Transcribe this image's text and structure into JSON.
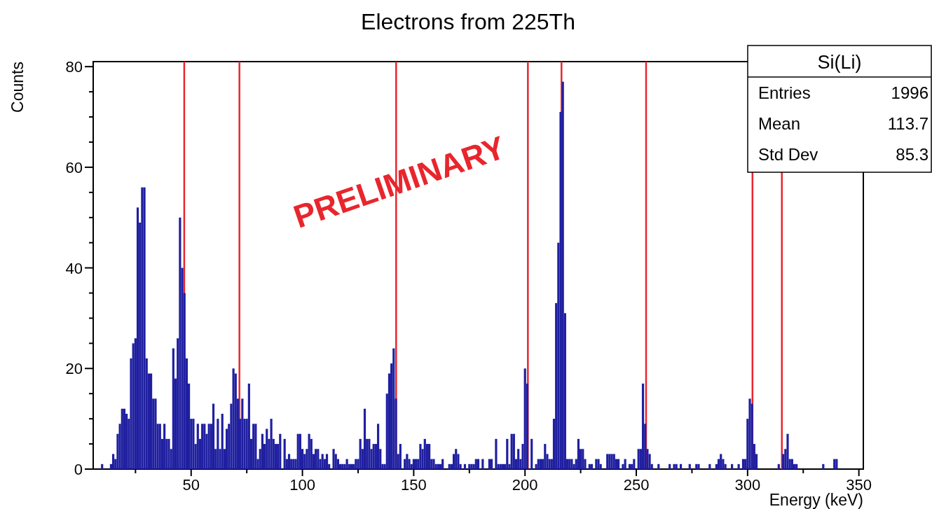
{
  "chart_data": {
    "type": "histogram",
    "title": "Electrons from 225Th",
    "xlabel": "Energy (keV)",
    "ylabel": "Counts",
    "color": "#1f1fa0",
    "bins": [
      9.5,
      10.5,
      11.5,
      12.5,
      13.5,
      14.5,
      15.5,
      16.5,
      17.5,
      18.5,
      19.5,
      20.5,
      21.5,
      22.5,
      23.5,
      24.5,
      25.5,
      26.5,
      27.5,
      28.5,
      29.5,
      30.5,
      31.5,
      32.5,
      33.5,
      34.5,
      35.5,
      36.5,
      37.5,
      38.5,
      39.5,
      40.5,
      41.5,
      42.5,
      43.5,
      44.5,
      45.5,
      46.5,
      47.5,
      48.5,
      49.5,
      50.5,
      51.5,
      52.5,
      53.5,
      54.5,
      55.5,
      56.5,
      57.5,
      58.5,
      59.5,
      60.5,
      61.5,
      62.5,
      63.5,
      64.5,
      65.5,
      66.5,
      67.5,
      68.5,
      69.5,
      70.5,
      71.5,
      72.5,
      73.5,
      74.5,
      75.5,
      76.5,
      77.5,
      78.5,
      79.5,
      80.5,
      81.5,
      82.5,
      83.5,
      84.5,
      85.5,
      86.5,
      87.5,
      88.5,
      89.5,
      90.5,
      91.5,
      92.5,
      93.5,
      94.5,
      95.5,
      96.5,
      97.5,
      98.5,
      99.5,
      100.5,
      101.5,
      102.5,
      103.5,
      104.5,
      105.5,
      106.5,
      107.5,
      108.5,
      109.5,
      110.5,
      111.5,
      112.5,
      113.5,
      114.5,
      115.5,
      116.5,
      117.5,
      118.5,
      119.5,
      120.5,
      121.5,
      122.5,
      123.5,
      124.5,
      125.5,
      126.5,
      127.5,
      128.5,
      129.5,
      130.5,
      131.5,
      132.5,
      133.5,
      134.5,
      135.5,
      136.5,
      137.5,
      138.5,
      139.5,
      140.5,
      141.5,
      142.5,
      143.5,
      144.5,
      145.5,
      146.5,
      147.5,
      148.5,
      149.5,
      150.5,
      151.5,
      152.5,
      153.5,
      154.5,
      155.5,
      156.5,
      157.5,
      158.5,
      159.5,
      160.5,
      161.5,
      162.5,
      163.5,
      164.5,
      165.5,
      166.5,
      167.5,
      168.5,
      169.5,
      170.5,
      171.5,
      172.5,
      173.5,
      174.5,
      175.5,
      176.5,
      177.5,
      178.5,
      179.5,
      180.5,
      181.5,
      182.5,
      183.5,
      184.5,
      185.5,
      186.5,
      187.5,
      188.5,
      189.5,
      190.5,
      191.5,
      192.5,
      193.5,
      194.5,
      195.5,
      196.5,
      197.5,
      198.5,
      199.5,
      200.5,
      201.5,
      202.5,
      203.5,
      204.5,
      205.5,
      206.5,
      207.5,
      208.5,
      209.5,
      210.5,
      211.5,
      212.5,
      213.5,
      214.5,
      215.5,
      216.5,
      217.5,
      218.5,
      219.5,
      220.5,
      221.5,
      222.5,
      223.5,
      224.5,
      225.5,
      226.5,
      227.5,
      228.5,
      229.5,
      230.5,
      231.5,
      232.5,
      233.5,
      234.5,
      235.5,
      236.5,
      237.5,
      238.5,
      239.5,
      240.5,
      241.5,
      242.5,
      243.5,
      244.5,
      245.5,
      246.5,
      247.5,
      248.5,
      249.5,
      250.5,
      251.5,
      252.5,
      253.5,
      254.5,
      255.5,
      256.5,
      257.5,
      258.5,
      259.5,
      260.5,
      261.5,
      262.5,
      263.5,
      264.5,
      265.5,
      266.5,
      267.5,
      268.5,
      269.5,
      270.5,
      271.5,
      272.5,
      273.5,
      274.5,
      275.5,
      276.5,
      277.5,
      278.5,
      279.5,
      280.5,
      281.5,
      282.5,
      283.5,
      284.5,
      285.5,
      286.5,
      287.5,
      288.5,
      289.5,
      290.5,
      291.5,
      292.5,
      293.5,
      294.5,
      295.5,
      296.5,
      297.5,
      298.5,
      299.5,
      300.5,
      301.5,
      302.5,
      303.5,
      304.5,
      305.5,
      306.5,
      307.5,
      308.5,
      309.5,
      310.5,
      311.5,
      312.5,
      313.5,
      314.5,
      315.5,
      316.5,
      317.5,
      318.5,
      319.5,
      320.5,
      321.5,
      322.5,
      323.5,
      324.5,
      325.5,
      326.5,
      327.5,
      328.5,
      329.5,
      330.5,
      331.5,
      332.5,
      333.5,
      334.5,
      335.5,
      336.5,
      337.5,
      338.5,
      339.5,
      340.5
    ],
    "values": [
      1,
      0,
      0,
      0,
      1,
      3,
      2,
      7,
      9,
      12,
      12,
      11,
      10,
      22,
      25,
      26,
      52,
      49,
      56,
      56,
      22,
      19,
      19,
      14,
      14,
      9,
      9,
      6,
      9,
      6,
      6,
      4,
      24,
      18,
      26,
      50,
      40,
      35,
      22,
      17,
      10,
      10,
      5,
      9,
      6,
      9,
      9,
      7,
      9,
      9,
      13,
      4,
      10,
      4,
      11,
      4,
      8,
      9,
      13,
      20,
      19,
      14,
      10,
      14,
      10,
      10,
      17,
      6,
      9,
      9,
      2,
      4,
      7,
      5,
      8,
      6,
      10,
      6,
      5,
      5,
      7,
      0,
      6,
      2,
      3,
      2,
      2,
      2,
      7,
      7,
      4,
      3,
      4,
      7,
      6,
      3,
      4,
      4,
      2,
      3,
      2,
      3,
      1,
      0,
      4,
      3,
      2,
      1,
      1,
      1,
      2,
      1,
      1,
      1,
      2,
      2,
      6,
      4,
      12,
      6,
      6,
      4,
      5,
      5,
      9,
      4,
      1,
      1,
      15,
      19,
      21,
      24,
      14,
      3,
      5,
      0,
      2,
      3,
      2,
      1,
      2,
      2,
      2,
      5,
      4,
      6,
      5,
      5,
      2,
      2,
      1,
      1,
      1,
      2,
      0,
      0,
      1,
      1,
      3,
      4,
      3,
      1,
      0,
      1,
      0,
      1,
      1,
      1,
      2,
      2,
      0,
      2,
      0,
      0,
      2,
      2,
      0,
      6,
      1,
      1,
      1,
      1,
      6,
      1,
      7,
      7,
      2,
      4,
      2,
      5,
      20,
      17,
      0,
      6,
      0,
      1,
      2,
      2,
      2,
      5,
      3,
      2,
      2,
      10,
      33,
      45,
      71,
      77,
      31,
      2,
      2,
      2,
      1,
      2,
      6,
      4,
      4,
      2,
      0,
      1,
      1,
      0,
      2,
      2,
      1,
      0,
      0,
      3,
      3,
      3,
      3,
      2,
      2,
      0,
      1,
      2,
      0,
      1,
      1,
      2,
      0,
      4,
      4,
      17,
      9,
      4,
      3,
      1,
      0,
      0,
      1,
      0,
      0,
      0,
      0,
      1,
      0,
      1,
      1,
      0,
      1,
      0,
      0,
      0,
      1,
      0,
      0,
      1,
      1,
      0,
      0,
      0,
      0,
      1,
      0,
      0,
      1,
      2,
      3,
      2,
      1,
      0,
      0,
      1,
      0,
      0,
      1,
      0,
      2,
      2,
      10,
      14,
      13,
      5,
      3,
      0,
      0,
      0,
      0,
      0,
      0,
      0,
      0,
      0,
      1,
      0,
      3,
      4,
      7,
      2,
      2,
      1,
      1,
      0,
      0,
      0,
      0,
      0,
      0,
      0,
      0,
      0,
      0,
      0,
      1,
      0,
      0,
      0,
      0,
      2,
      2
    ],
    "xlim": [
      6,
      352
    ],
    "xticks": [
      {
        "value": 25,
        "label": null
      },
      50,
      {
        "value": 75,
        "label": null
      },
      100,
      {
        "value": 125,
        "label": null
      },
      150,
      {
        "value": 175,
        "label": null
      },
      200,
      {
        "value": 225,
        "label": null
      },
      250,
      {
        "value": 275,
        "label": null
      },
      300,
      {
        "value": 325,
        "label": null
      },
      350
    ],
    "ylim": [
      0,
      81
    ],
    "yticks": [
      0,
      {
        "value": 5,
        "label": null
      },
      {
        "value": 10,
        "label": null
      },
      {
        "value": 15,
        "label": null
      },
      20,
      {
        "value": 25,
        "label": null
      },
      {
        "value": 30,
        "label": null
      },
      {
        "value": 35,
        "label": null
      },
      40,
      {
        "value": 45,
        "label": null
      },
      {
        "value": 50,
        "label": null
      },
      {
        "value": 55,
        "label": null
      },
      60,
      {
        "value": 65,
        "label": null
      },
      {
        "value": 70,
        "label": null
      },
      {
        "value": 75,
        "label": null
      },
      80
    ],
    "ref_lines": [
      {
        "axis": "x",
        "value": 46.9,
        "color": "#e8262d"
      },
      {
        "axis": "x",
        "value": 71.7,
        "color": "#e8262d"
      },
      {
        "axis": "x",
        "value": 142.1,
        "color": "#e8262d"
      },
      {
        "axis": "x",
        "value": 201.3,
        "color": "#e8262d"
      },
      {
        "axis": "x",
        "value": 216.4,
        "color": "#e8262d"
      },
      {
        "axis": "x",
        "value": 254.4,
        "color": "#e8262d"
      },
      {
        "axis": "x",
        "value": 302.2,
        "color": "#e8262d"
      },
      {
        "axis": "x",
        "value": 315.4,
        "color": "#e8262d"
      }
    ],
    "annotations": [
      "PRELIMINARY",
      "Si(Li)",
      "Entries",
      "1996",
      "Mean",
      "113.7",
      "Std Dev",
      "85.3"
    ]
  }
}
